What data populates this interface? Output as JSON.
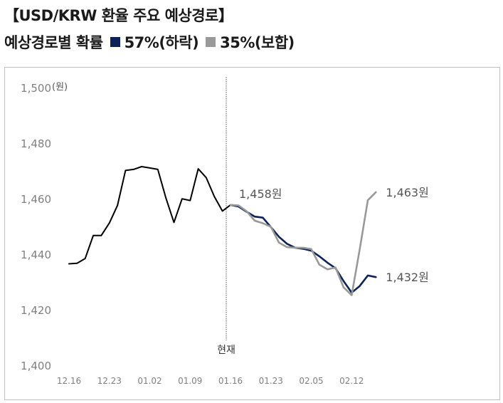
{
  "header": {
    "title": "【USD/KRW 환율 주요 예상경로】",
    "legend_prefix": "예상경로별 확률",
    "legend_items": [
      {
        "label": "57%(하락)",
        "color": "#0d2259"
      },
      {
        "label": "35%(보합)",
        "color": "#999999"
      }
    ]
  },
  "chart_data": {
    "type": "line",
    "unit_label": "(원)",
    "ylim": [
      1400,
      1500
    ],
    "yticks": [
      "1,400",
      "1,420",
      "1,440",
      "1,460",
      "1,480",
      "1,500"
    ],
    "xtick_labels": [
      "12.16",
      "12.23",
      "01.02",
      "01.09",
      "01.16",
      "01.23",
      "02.05",
      "02.12"
    ],
    "now_label": "현재",
    "series": [
      {
        "role": "history",
        "color": "#000000",
        "values": [
          1436.8,
          1437.0,
          1438.7,
          1447.0,
          1447.0,
          1451.5,
          1457.8,
          1470.4,
          1470.8,
          1471.8,
          1471.3,
          1470.8,
          1460.5,
          1451.7,
          1460.2,
          1459.6,
          1471.0,
          1467.8,
          1461.0,
          1455.8,
          1458.0
        ]
      },
      {
        "role": "forecast",
        "name": "57%(하락)",
        "color": "#0d2259",
        "values": [
          1458.0,
          1457.4,
          1455.5,
          1453.8,
          1453.4,
          1450.0,
          1446.5,
          1444.0,
          1442.6,
          1442.2,
          1441.5,
          1439.5,
          1437.2,
          1435.2,
          1430.6,
          1426.4,
          1428.8,
          1432.6,
          1432.0
        ],
        "end_label": "1,432원"
      },
      {
        "role": "forecast",
        "name": "35%(보합)",
        "color": "#999999",
        "values": [
          1458.0,
          1457.8,
          1455.7,
          1452.3,
          1451.4,
          1450.1,
          1444.4,
          1442.8,
          1442.6,
          1442.6,
          1442.1,
          1436.5,
          1434.8,
          1435.5,
          1428.3,
          1425.5,
          1442.0,
          1459.7,
          1462.6
        ],
        "end_label": "1,463원"
      }
    ],
    "start_label": "1,458원"
  }
}
